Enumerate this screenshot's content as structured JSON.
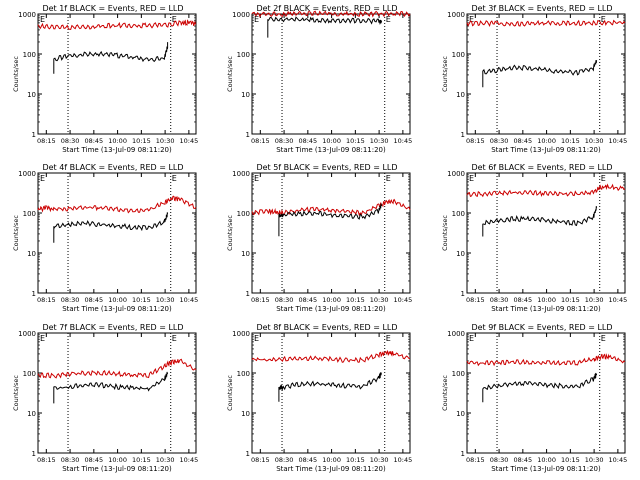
{
  "chart_data": [
    {
      "type": "line",
      "title": "Det 1f BLACK = Events, RED = LLD",
      "xlabel": "Start Time (13-Jul-09 08:11:20)",
      "ylabel": "Counts/sec",
      "yscale": "log",
      "ylim": [
        1,
        1000
      ],
      "yticks": [
        "1",
        "10",
        "100",
        "1000"
      ],
      "xticks": [
        "08:15",
        "08:30",
        "08:45",
        "10:00",
        "10:15",
        "10:30",
        "10:45"
      ],
      "marker_top": "E",
      "marker_bottom": "E",
      "series": [
        {
          "color": "#cc0000",
          "x": [
            0,
            0.1,
            0.2,
            0.3,
            0.4,
            0.5,
            0.6,
            0.7,
            0.8,
            0.9,
            0.95,
            1
          ],
          "y": [
            500,
            480,
            460,
            470,
            500,
            520,
            510,
            520,
            530,
            600,
            610,
            560
          ]
        },
        {
          "color": "#000000",
          "x": [
            0.1,
            0.1,
            0.2,
            0.3,
            0.4,
            0.5,
            0.6,
            0.7,
            0.8,
            0.82,
            0.82
          ],
          "y": [
            30,
            75,
            90,
            98,
            100,
            92,
            84,
            72,
            80,
            150,
            190
          ]
        }
      ]
    },
    {
      "type": "line",
      "title": "Det 2f BLACK = Events, RED = LLD",
      "xlabel": "Start Time (13-Jul-09 08:11:20)",
      "ylabel": "Counts/sec",
      "yscale": "log",
      "ylim": [
        1,
        1000
      ],
      "yticks": [
        "1",
        "10",
        "100",
        "1000"
      ],
      "xticks": [
        "08:15",
        "08:30",
        "08:45",
        "10:00",
        "10:15",
        "10:30",
        "10:45"
      ],
      "marker_top": "E",
      "marker_bottom": "E",
      "series": [
        {
          "color": "#cc0000",
          "x": [
            0,
            0.1,
            0.2,
            0.3,
            0.4,
            0.5,
            0.6,
            0.7,
            0.8,
            0.9,
            1
          ],
          "y": [
            1000,
            1000,
            1000,
            1010,
            1060,
            1020,
            1000,
            1000,
            1010,
            1020,
            1000
          ]
        },
        {
          "color": "#000000",
          "x": [
            0.1,
            0.1,
            0.2,
            0.3,
            0.4,
            0.5,
            0.6,
            0.7,
            0.8,
            0.82
          ],
          "y": [
            250,
            720,
            740,
            720,
            700,
            690,
            690,
            680,
            650,
            640
          ]
        }
      ]
    },
    {
      "type": "line",
      "title": "Det 3f BLACK = Events, RED = LLD",
      "xlabel": "Start Time (13-Jul-09 08:11:20)",
      "ylabel": "Counts/sec",
      "yscale": "log",
      "ylim": [
        1,
        1000
      ],
      "yticks": [
        "1",
        "10",
        "100",
        "1000"
      ],
      "xticks": [
        "08:15",
        "08:30",
        "08:45",
        "10:00",
        "10:15",
        "10:30",
        "10:45"
      ],
      "marker_top": "E",
      "marker_bottom": "E",
      "series": [
        {
          "color": "#cc0000",
          "x": [
            0,
            0.1,
            0.2,
            0.3,
            0.4,
            0.5,
            0.6,
            0.7,
            0.8,
            0.9,
            1
          ],
          "y": [
            580,
            590,
            570,
            560,
            580,
            600,
            590,
            590,
            600,
            610,
            600
          ]
        },
        {
          "color": "#000000",
          "x": [
            0.1,
            0.1,
            0.2,
            0.3,
            0.4,
            0.5,
            0.6,
            0.7,
            0.8,
            0.82
          ],
          "y": [
            15,
            35,
            40,
            46,
            44,
            40,
            36,
            34,
            45,
            70
          ]
        }
      ]
    },
    {
      "type": "line",
      "title": "Det 4f BLACK = Events, RED = LLD",
      "xlabel": "Start Time (13-Jul-09 08:11:20)",
      "ylabel": "Counts/sec",
      "yscale": "log",
      "ylim": [
        1,
        1000
      ],
      "yticks": [
        "1",
        "10",
        "100",
        "1000"
      ],
      "xticks": [
        "08:15",
        "08:30",
        "08:45",
        "10:00",
        "10:15",
        "10:30",
        "10:45"
      ],
      "marker_top": "E",
      "marker_bottom": "E",
      "series": [
        {
          "color": "#cc0000",
          "x": [
            0,
            0.05,
            0.1,
            0.2,
            0.3,
            0.4,
            0.5,
            0.6,
            0.7,
            0.8,
            0.85,
            0.9,
            1
          ],
          "y": [
            120,
            135,
            125,
            130,
            140,
            135,
            125,
            110,
            120,
            180,
            240,
            220,
            140
          ]
        },
        {
          "color": "#000000",
          "x": [
            0.1,
            0.1,
            0.2,
            0.3,
            0.4,
            0.5,
            0.6,
            0.7,
            0.8,
            0.82
          ],
          "y": [
            18,
            45,
            52,
            55,
            52,
            48,
            44,
            42,
            60,
            95
          ]
        }
      ]
    },
    {
      "type": "line",
      "title": "Det 5f BLACK = Events, RED = LLD",
      "xlabel": "Start Time (13-Jul-09 08:11:20)",
      "ylabel": "Counts/sec",
      "yscale": "log",
      "ylim": [
        1,
        1000
      ],
      "yticks": [
        "1",
        "10",
        "100",
        "1000"
      ],
      "xticks": [
        "08:15",
        "08:30",
        "08:45",
        "10:00",
        "10:15",
        "10:30",
        "10:45"
      ],
      "marker_top": "E",
      "marker_bottom": "E",
      "series": [
        {
          "color": "#cc0000",
          "x": [
            0,
            0.1,
            0.15,
            0.2,
            0.3,
            0.4,
            0.5,
            0.6,
            0.7,
            0.8,
            0.85,
            0.9,
            1
          ],
          "y": [
            100,
            110,
            105,
            100,
            115,
            125,
            120,
            110,
            100,
            150,
            190,
            200,
            120
          ]
        },
        {
          "color": "#000000",
          "x": [
            0.17,
            0.17,
            0.2,
            0.3,
            0.4,
            0.5,
            0.6,
            0.7,
            0.8,
            0.82
          ],
          "y": [
            30,
            85,
            90,
            95,
            100,
            90,
            85,
            80,
            110,
            160
          ]
        }
      ]
    },
    {
      "type": "line",
      "title": "Det 6f BLACK = Events, RED = LLD",
      "xlabel": "Start Time (13-Jul-09 08:11:20)",
      "ylabel": "Counts/sec",
      "yscale": "log",
      "ylim": [
        1,
        1000
      ],
      "yticks": [
        "1",
        "10",
        "100",
        "1000"
      ],
      "xticks": [
        "08:15",
        "08:30",
        "08:45",
        "10:00",
        "10:15",
        "10:30",
        "10:45"
      ],
      "marker_top": "E",
      "marker_bottom": "E",
      "series": [
        {
          "color": "#cc0000",
          "x": [
            0,
            0.1,
            0.2,
            0.3,
            0.4,
            0.5,
            0.6,
            0.7,
            0.8,
            0.85,
            0.9,
            1
          ],
          "y": [
            290,
            300,
            310,
            320,
            320,
            310,
            300,
            300,
            330,
            440,
            450,
            400
          ]
        },
        {
          "color": "#000000",
          "x": [
            0.1,
            0.1,
            0.2,
            0.3,
            0.4,
            0.5,
            0.6,
            0.7,
            0.8,
            0.82
          ],
          "y": [
            25,
            55,
            65,
            72,
            70,
            65,
            60,
            55,
            80,
            135
          ]
        }
      ]
    },
    {
      "type": "line",
      "title": "Det 7f BLACK = Events, RED = LLD",
      "xlabel": "Start Time (13-Jul-09 08:11:20)",
      "ylabel": "Counts/sec",
      "yscale": "log",
      "ylim": [
        1,
        1000
      ],
      "yticks": [
        "1",
        "10",
        "100",
        "1000"
      ],
      "xticks": [
        "08:15",
        "08:30",
        "08:45",
        "10:00",
        "10:15",
        "10:30",
        "10:45"
      ],
      "marker_top": "E",
      "marker_bottom": "E",
      "series": [
        {
          "color": "#cc0000",
          "x": [
            0,
            0.1,
            0.2,
            0.3,
            0.4,
            0.5,
            0.6,
            0.7,
            0.8,
            0.85,
            0.9,
            1
          ],
          "y": [
            90,
            85,
            95,
            100,
            100,
            95,
            90,
            88,
            150,
            190,
            200,
            120
          ]
        },
        {
          "color": "#000000",
          "x": [
            0.1,
            0.1,
            0.2,
            0.3,
            0.4,
            0.5,
            0.6,
            0.7,
            0.8,
            0.82
          ],
          "y": [
            18,
            40,
            45,
            50,
            50,
            45,
            42,
            40,
            70,
            100
          ]
        }
      ]
    },
    {
      "type": "line",
      "title": "Det 8f BLACK = Events, RED = LLD",
      "xlabel": "Start Time (13-Jul-09 08:11:20)",
      "ylabel": "Counts/sec",
      "yscale": "log",
      "ylim": [
        1,
        1000
      ],
      "yticks": [
        "1",
        "10",
        "100",
        "1000"
      ],
      "xticks": [
        "08:15",
        "08:30",
        "08:45",
        "10:00",
        "10:15",
        "10:30",
        "10:45"
      ],
      "marker_top": "E",
      "marker_bottom": "E",
      "series": [
        {
          "color": "#cc0000",
          "x": [
            0,
            0.1,
            0.2,
            0.3,
            0.4,
            0.5,
            0.6,
            0.7,
            0.8,
            0.85,
            0.9,
            1
          ],
          "y": [
            220,
            210,
            220,
            230,
            230,
            220,
            210,
            210,
            280,
            320,
            300,
            230
          ]
        },
        {
          "color": "#000000",
          "x": [
            0.17,
            0.17,
            0.2,
            0.3,
            0.4,
            0.5,
            0.6,
            0.7,
            0.8,
            0.82
          ],
          "y": [
            18,
            40,
            45,
            52,
            55,
            50,
            48,
            45,
            75,
            100
          ]
        }
      ]
    },
    {
      "type": "line",
      "title": "Det 9f BLACK = Events, RED = LLD",
      "xlabel": "Start Time (13-Jul-09 08:11:20)",
      "ylabel": "Counts/sec",
      "yscale": "log",
      "ylim": [
        1,
        1000
      ],
      "yticks": [
        "1",
        "10",
        "100",
        "1000"
      ],
      "xticks": [
        "08:15",
        "08:30",
        "08:45",
        "10:00",
        "10:15",
        "10:30",
        "10:45"
      ],
      "marker_top": "E",
      "marker_bottom": "E",
      "series": [
        {
          "color": "#cc0000",
          "x": [
            0,
            0.1,
            0.2,
            0.3,
            0.4,
            0.5,
            0.6,
            0.7,
            0.8,
            0.85,
            0.9,
            1
          ],
          "y": [
            180,
            175,
            185,
            190,
            190,
            185,
            180,
            180,
            220,
            260,
            250,
            190
          ]
        },
        {
          "color": "#000000",
          "x": [
            0.1,
            0.1,
            0.2,
            0.3,
            0.4,
            0.5,
            0.6,
            0.7,
            0.8,
            0.82
          ],
          "y": [
            20,
            42,
            48,
            55,
            55,
            50,
            48,
            45,
            70,
            95
          ]
        }
      ]
    }
  ]
}
